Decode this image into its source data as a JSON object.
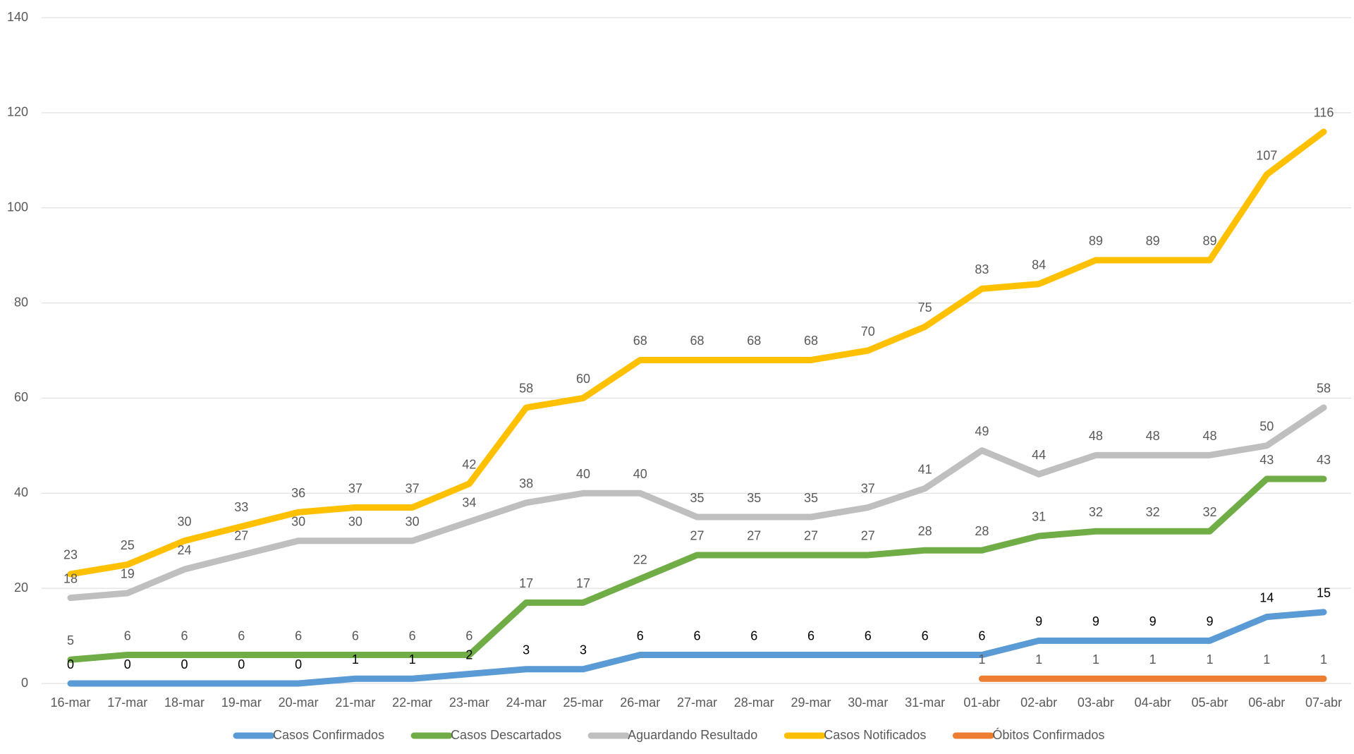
{
  "chart_data": {
    "type": "line",
    "categories": [
      "16-mar",
      "17-mar",
      "18-mar",
      "19-mar",
      "20-mar",
      "21-mar",
      "22-mar",
      "23-mar",
      "24-mar",
      "25-mar",
      "26-mar",
      "27-mar",
      "28-mar",
      "29-mar",
      "30-mar",
      "31-mar",
      "01-abr",
      "02-abr",
      "03-abr",
      "04-abr",
      "05-abr",
      "06-abr",
      "07-abr"
    ],
    "series": [
      {
        "name": "Casos Confirmados",
        "color": "#5b9bd5",
        "values": [
          0,
          0,
          0,
          0,
          0,
          1,
          1,
          2,
          3,
          3,
          6,
          6,
          6,
          6,
          6,
          6,
          6,
          9,
          9,
          9,
          9,
          14,
          15
        ]
      },
      {
        "name": "Casos Descartados",
        "color": "#70ad47",
        "values": [
          5,
          6,
          6,
          6,
          6,
          6,
          6,
          6,
          17,
          17,
          22,
          27,
          27,
          27,
          27,
          28,
          28,
          31,
          32,
          32,
          32,
          43,
          43
        ]
      },
      {
        "name": "Aguardando Resultado",
        "color": "#bfbfbf",
        "values": [
          18,
          19,
          24,
          27,
          30,
          30,
          30,
          34,
          38,
          40,
          40,
          35,
          35,
          35,
          37,
          41,
          49,
          44,
          48,
          48,
          48,
          50,
          58
        ]
      },
      {
        "name": "Casos Notificados",
        "color": "#ffc000",
        "values": [
          23,
          25,
          30,
          33,
          36,
          37,
          37,
          42,
          58,
          60,
          68,
          68,
          68,
          68,
          70,
          75,
          83,
          84,
          89,
          89,
          89,
          107,
          116
        ]
      },
      {
        "name": "Óbitos Confirmados",
        "color": "#ed7d31",
        "values": [
          null,
          null,
          null,
          null,
          null,
          null,
          null,
          null,
          null,
          null,
          null,
          null,
          null,
          null,
          null,
          null,
          1,
          1,
          1,
          1,
          1,
          1,
          1
        ]
      }
    ],
    "ylim": [
      0,
      140
    ],
    "yticks": [
      0,
      20,
      40,
      60,
      80,
      100,
      120,
      140
    ],
    "grid": true,
    "legend": "bottom"
  }
}
